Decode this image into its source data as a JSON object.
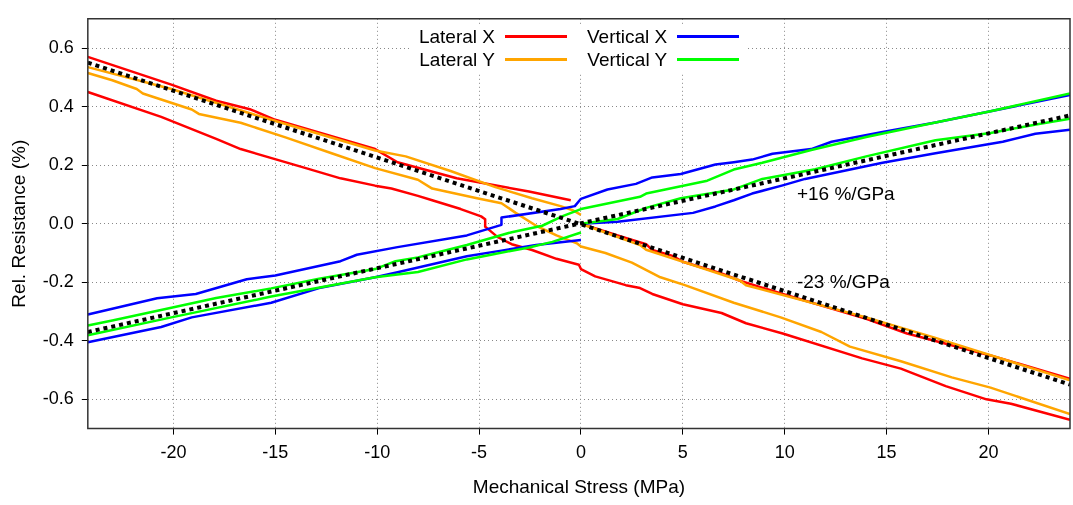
{
  "chart_data": {
    "type": "line",
    "xlabel": "Mechanical Stress (MPa)",
    "ylabel": "Rel. Resistance (%)",
    "xlim": [
      -24.2,
      24
    ],
    "ylim": [
      -0.7,
      0.7
    ],
    "xticks": [
      -20,
      -15,
      -10,
      -5,
      0,
      5,
      10,
      15,
      20
    ],
    "yticks": [
      -0.6,
      -0.4,
      -0.2,
      {
        "value": 0,
        "label": "0.0"
      },
      0.2,
      0.4,
      0.6
    ],
    "grid": true,
    "legend": "top",
    "marker": "none",
    "line_style": "solid",
    "annotations": [
      "+16 %/GPa",
      "-23 %/GPa"
    ],
    "series": [
      {
        "name": "Lateral X",
        "color": "#ff0000",
        "x": [
          -24.2,
          -20.1,
          -17.9,
          -16.2,
          -15.0,
          -10.1,
          -9.0,
          -6.1,
          -2.55,
          -0.5,
          null,
          -24.2,
          -20.6,
          -17.9,
          -16.7,
          -13.5,
          -11.8,
          -10.1,
          -9.3,
          -8.0,
          -7.3,
          -5.9,
          -4.9,
          -4.7,
          -4.7,
          -4.1,
          -3.4,
          -2.4,
          -1.2,
          -0.1,
          0,
          0.7,
          2.2,
          2.9,
          3.5,
          5.0,
          6.9,
          8.1,
          9.9,
          13.8,
          15.7,
          17.9,
          19.9,
          21.1,
          24,
          null,
          0,
          1.8,
          3.2,
          3.5,
          4.5,
          5.0,
          6.9,
          7.8,
          9.9,
          14.0,
          16.0,
          20.1,
          24
        ],
        "values": [
          0.57,
          0.475,
          0.42,
          0.39,
          0.355,
          0.255,
          0.21,
          0.155,
          0.11,
          0.08,
          null,
          0.45,
          0.365,
          0.29,
          0.255,
          0.19,
          0.155,
          0.13,
          0.12,
          0.095,
          0.08,
          0.05,
          0.025,
          0.015,
          -0.01,
          -0.045,
          -0.07,
          -0.09,
          -0.12,
          -0.14,
          -0.155,
          -0.18,
          -0.21,
          -0.22,
          -0.24,
          -0.275,
          -0.305,
          -0.34,
          -0.375,
          -0.46,
          -0.495,
          -0.555,
          -0.6,
          -0.615,
          -0.67,
          null,
          0,
          -0.04,
          -0.07,
          -0.09,
          -0.11,
          -0.13,
          -0.17,
          -0.195,
          -0.24,
          -0.325,
          -0.375,
          -0.45,
          -0.53
        ]
      },
      {
        "name": "Lateral Y",
        "color": "#ffa500",
        "x": [
          -24.2,
          -20.1,
          -15.2,
          -10.1,
          -8.6,
          -6.4,
          -4.2,
          -2.4,
          -1.0,
          -0.4,
          0,
          null,
          -24.2,
          -23.0,
          -21.8,
          -21.5,
          -19.1,
          -18.75,
          -16.7,
          -14.5,
          -12.2,
          -10.1,
          -8.0,
          -7.3,
          -5.1,
          -3.9,
          -3.2,
          -2.2,
          -1.2,
          -0.2,
          0,
          1.2,
          2.5,
          3.9,
          5.1,
          7.5,
          9.8,
          11.8,
          13.2,
          15.7,
          18.2,
          20.1,
          24,
          null,
          0,
          2.9,
          3.2,
          4.9,
          7.8,
          8.1,
          14.0,
          17.4,
          24
        ],
        "values": [
          0.535,
          0.46,
          0.355,
          0.25,
          0.23,
          0.18,
          0.125,
          0.087,
          0.06,
          0.046,
          0.03,
          null,
          0.515,
          0.49,
          0.46,
          0.445,
          0.39,
          0.375,
          0.345,
          0.295,
          0.24,
          0.19,
          0.15,
          0.12,
          0.087,
          0.07,
          0.037,
          -0.007,
          -0.04,
          -0.067,
          -0.078,
          -0.1,
          -0.133,
          -0.183,
          -0.21,
          -0.27,
          -0.32,
          -0.37,
          -0.42,
          -0.47,
          -0.525,
          -0.56,
          -0.65,
          null,
          0,
          -0.073,
          -0.089,
          -0.128,
          -0.194,
          -0.21,
          -0.32,
          -0.39,
          -0.535
        ]
      },
      {
        "name": "Vertical X",
        "color": "#0000ff",
        "x": [
          -24.2,
          -20.8,
          -18.9,
          -16.4,
          -15.0,
          -11.8,
          -11.0,
          -9.0,
          -5.6,
          -3.9,
          -3.9,
          -1.0,
          -0.3,
          0,
          1.3,
          2.7,
          3.5,
          4.9,
          6.6,
          7.5,
          8.4,
          9.4,
          11.3,
          12.3,
          14.8,
          17.4,
          20.1,
          24,
          null,
          -24.2,
          -20.6,
          -19.1,
          -15.2,
          -12.85,
          -10.1,
          -9.0,
          -5.6,
          -3.9,
          -2.2,
          0,
          null,
          0,
          1.8,
          5.5,
          6.6,
          7.5,
          8.4,
          9.9,
          11.0,
          14.8,
          17.4,
          20.7,
          22.3,
          24
        ],
        "values": [
          -0.31,
          -0.255,
          -0.24,
          -0.19,
          -0.177,
          -0.128,
          -0.106,
          -0.08,
          -0.04,
          -0.004,
          0.021,
          0.05,
          0.06,
          0.085,
          0.117,
          0.136,
          0.158,
          0.17,
          0.202,
          0.21,
          0.219,
          0.239,
          0.255,
          0.28,
          0.313,
          0.346,
          0.384,
          0.44,
          null,
          -0.405,
          -0.353,
          -0.32,
          -0.27,
          -0.22,
          -0.183,
          -0.166,
          -0.111,
          -0.092,
          -0.073,
          -0.056,
          null,
          0,
          0.007,
          0.037,
          0.059,
          0.08,
          0.103,
          0.131,
          0.153,
          0.208,
          0.241,
          0.28,
          0.307,
          0.321
        ]
      },
      {
        "name": "Vertical Y",
        "color": "#00ff00",
        "x": [
          -24.2,
          -23.0,
          -20.1,
          -17.9,
          -15.2,
          -12.85,
          -10.1,
          -9.1,
          -8.0,
          -5.6,
          -3.4,
          -1.9,
          -0.9,
          0,
          2.9,
          3.2,
          6.2,
          7.5,
          8.9,
          11.3,
          14.0,
          17.4,
          20.1,
          24,
          null,
          -24.2,
          -20.1,
          -15.2,
          -10.1,
          -8.0,
          -5.6,
          -2.55,
          -1.4,
          0,
          null,
          0,
          1.8,
          3.2,
          4.9,
          7.5,
          8.9,
          11.5,
          14.0,
          17.4,
          20.1,
          22.4,
          24
        ],
        "values": [
          -0.348,
          -0.331,
          -0.287,
          -0.254,
          -0.221,
          -0.188,
          -0.155,
          -0.128,
          -0.115,
          -0.073,
          -0.029,
          -0.007,
          0.026,
          0.05,
          0.092,
          0.103,
          0.147,
          0.185,
          0.208,
          0.252,
          0.296,
          0.346,
          0.384,
          0.445,
          null,
          -0.381,
          -0.32,
          -0.249,
          -0.183,
          -0.165,
          -0.122,
          -0.081,
          -0.062,
          -0.03,
          null,
          0,
          0.016,
          0.054,
          0.087,
          0.117,
          0.153,
          0.186,
          0.23,
          0.285,
          0.31,
          0.34,
          0.359
        ]
      },
      {
        "color": "#000000",
        "line_style": "dotted",
        "x": [
          -24.2,
          24
        ],
        "values": [
          0.55,
          -0.55
        ]
      },
      {
        "color": "#000000",
        "line_style": "dotted",
        "x": [
          -24.2,
          24
        ],
        "values": [
          -0.37,
          0.37
        ]
      }
    ]
  }
}
